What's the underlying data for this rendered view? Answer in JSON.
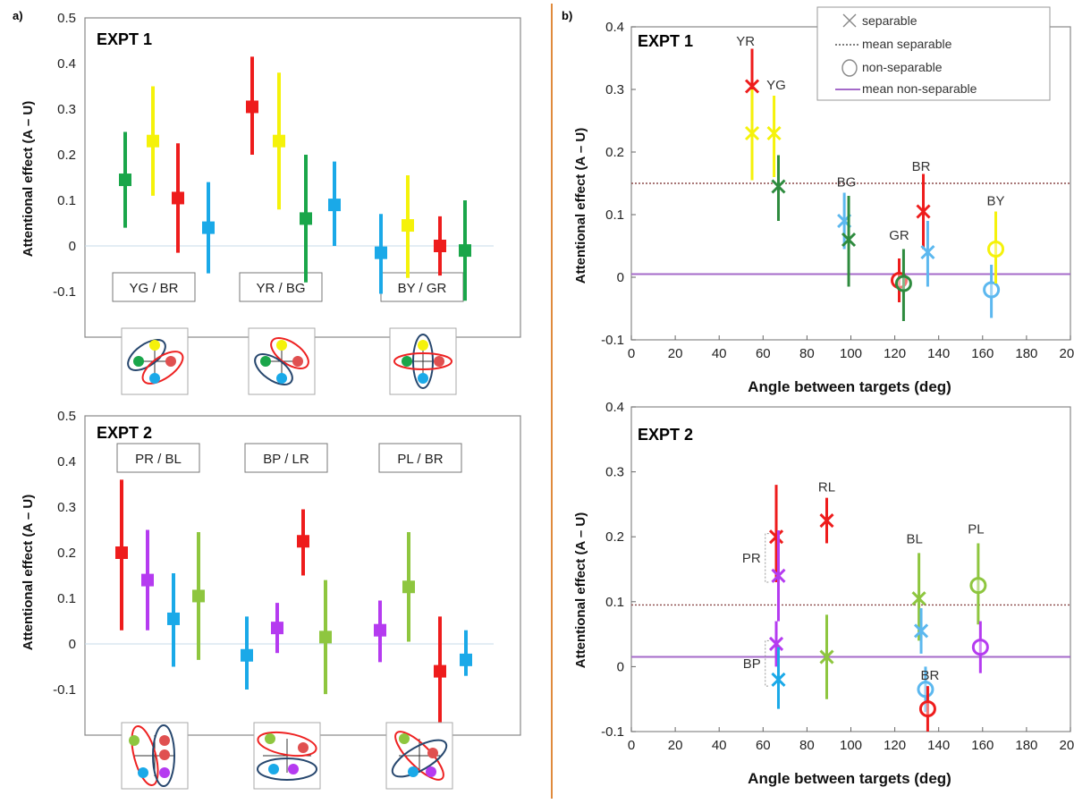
{
  "colors": {
    "yellow": "#f5f20a",
    "green": "#1aa64a",
    "red": "#ee1c1c",
    "blue": "#1aa9e8",
    "lightblue": "#5cb8ef",
    "purple": "#b53bf0",
    "lime": "#8ec63f",
    "midgreen": "#2e8b3e",
    "ellipseRed": "#ee2222",
    "ellipseBlue": "#27476e",
    "sepLine": "#8b4a4a",
    "nonsepLine": "#a46ac9",
    "divider": "#e08a3c"
  },
  "panel_labels": {
    "a": "a)",
    "b": "b)"
  },
  "y_axis_label": "Attentional effect  (A – U)",
  "x_axis_label": "Angle between targets (deg)",
  "legend": {
    "separable": "separable",
    "mean_separable": "mean separable",
    "non_separable": "non-separable",
    "mean_non_separable": "mean non-separable"
  },
  "chart_data": [
    {
      "id": "a1",
      "type": "scatter",
      "title": "EXPT 1",
      "ylim": [
        -0.2,
        0.5
      ],
      "yticks": [
        {
          "v": -0.1,
          "t": "-0.1"
        },
        {
          "v": 0,
          "t": "0"
        },
        {
          "v": 0.1,
          "t": "0.1"
        },
        {
          "v": 0.2,
          "t": "0.2"
        },
        {
          "v": 0.3,
          "t": "0.3"
        },
        {
          "v": 0.4,
          "t": "0.4"
        },
        {
          "v": 0.5,
          "t": "0.5"
        }
      ],
      "conditions": [
        "YG / BR",
        "YR / BG",
        "BY / GR"
      ],
      "points": [
        {
          "g": 0,
          "i": 0,
          "color": "green",
          "y": 0.145,
          "lo": 0.04,
          "hi": 0.25
        },
        {
          "g": 0,
          "i": 1,
          "color": "yellow",
          "y": 0.23,
          "lo": 0.11,
          "hi": 0.35
        },
        {
          "g": 0,
          "i": 2,
          "color": "red",
          "y": 0.105,
          "lo": -0.015,
          "hi": 0.225
        },
        {
          "g": 0,
          "i": 3,
          "color": "blue",
          "y": 0.04,
          "lo": -0.06,
          "hi": 0.14
        },
        {
          "g": 1,
          "i": 0,
          "color": "red",
          "y": 0.305,
          "lo": 0.2,
          "hi": 0.415
        },
        {
          "g": 1,
          "i": 1,
          "color": "yellow",
          "y": 0.23,
          "lo": 0.08,
          "hi": 0.38
        },
        {
          "g": 1,
          "i": 2,
          "color": "green",
          "y": 0.06,
          "lo": -0.08,
          "hi": 0.2
        },
        {
          "g": 1,
          "i": 3,
          "color": "blue",
          "y": 0.09,
          "lo": 0.0,
          "hi": 0.185
        },
        {
          "g": 2,
          "i": 0,
          "color": "blue",
          "y": -0.015,
          "lo": -0.105,
          "hi": 0.07
        },
        {
          "g": 2,
          "i": 1,
          "color": "yellow",
          "y": 0.045,
          "lo": -0.07,
          "hi": 0.155
        },
        {
          "g": 2,
          "i": 2,
          "color": "red",
          "y": 0.0,
          "lo": -0.065,
          "hi": 0.065
        },
        {
          "g": 2,
          "i": 3,
          "color": "green",
          "y": -0.01,
          "lo": -0.12,
          "hi": 0.1
        }
      ]
    },
    {
      "id": "a2",
      "type": "scatter",
      "title": "EXPT 2",
      "ylim": [
        -0.2,
        0.5
      ],
      "yticks": [
        {
          "v": -0.1,
          "t": "-0.1"
        },
        {
          "v": 0,
          "t": "0"
        },
        {
          "v": 0.1,
          "t": "0.1"
        },
        {
          "v": 0.2,
          "t": "0.2"
        },
        {
          "v": 0.3,
          "t": "0.3"
        },
        {
          "v": 0.4,
          "t": "0.4"
        },
        {
          "v": 0.5,
          "t": "0.5"
        }
      ],
      "conditions": [
        "PR / BL",
        "BP / LR",
        "PL / BR"
      ],
      "points": [
        {
          "g": 0,
          "i": 0,
          "color": "red",
          "y": 0.2,
          "lo": 0.03,
          "hi": 0.36
        },
        {
          "g": 0,
          "i": 1,
          "color": "purple",
          "y": 0.14,
          "lo": 0.03,
          "hi": 0.25
        },
        {
          "g": 0,
          "i": 2,
          "color": "blue",
          "y": 0.055,
          "lo": -0.05,
          "hi": 0.155
        },
        {
          "g": 0,
          "i": 3,
          "color": "lime",
          "y": 0.105,
          "lo": -0.035,
          "hi": 0.245
        },
        {
          "g": 1,
          "i": 0,
          "color": "blue",
          "y": -0.025,
          "lo": -0.1,
          "hi": 0.06
        },
        {
          "g": 1,
          "i": 1,
          "color": "purple",
          "y": 0.035,
          "lo": -0.02,
          "hi": 0.09
        },
        {
          "g": 1,
          "i": 2,
          "color": "red",
          "y": 0.225,
          "lo": 0.15,
          "hi": 0.295
        },
        {
          "g": 1,
          "i": 3,
          "color": "lime",
          "y": 0.015,
          "lo": -0.11,
          "hi": 0.14
        },
        {
          "g": 2,
          "i": 0,
          "color": "purple",
          "y": 0.03,
          "lo": -0.04,
          "hi": 0.095
        },
        {
          "g": 2,
          "i": 1,
          "color": "lime",
          "y": 0.125,
          "lo": 0.005,
          "hi": 0.245
        },
        {
          "g": 2,
          "i": 2,
          "color": "red",
          "y": -0.06,
          "lo": -0.19,
          "hi": 0.06
        },
        {
          "g": 2,
          "i": 3,
          "color": "blue",
          "y": -0.035,
          "lo": -0.07,
          "hi": 0.03
        }
      ]
    },
    {
      "id": "b1",
      "type": "scatter",
      "title": "EXPT 1",
      "xlim": [
        0,
        200
      ],
      "ylim": [
        -0.1,
        0.4
      ],
      "xticks": [
        0,
        20,
        40,
        60,
        80,
        100,
        120,
        140,
        160,
        180,
        200
      ],
      "yticks": [
        {
          "v": -0.1,
          "t": "-0.1"
        },
        {
          "v": 0,
          "t": "0"
        },
        {
          "v": 0.1,
          "t": "0.1"
        },
        {
          "v": 0.2,
          "t": "0.2"
        },
        {
          "v": 0.3,
          "t": "0.3"
        },
        {
          "v": 0.4,
          "t": "0.4"
        }
      ],
      "mean_separable": 0.15,
      "mean_non_separable": 0.005,
      "points": [
        {
          "x": 55,
          "y": 0.305,
          "lo": 0.25,
          "hi": 0.365,
          "color": "red",
          "marker": "x"
        },
        {
          "x": 55,
          "y": 0.23,
          "lo": 0.155,
          "hi": 0.3,
          "color": "yellow",
          "marker": "x"
        },
        {
          "x": 65,
          "y": 0.23,
          "lo": 0.16,
          "hi": 0.29,
          "color": "yellow",
          "marker": "x"
        },
        {
          "x": 67,
          "y": 0.145,
          "lo": 0.09,
          "hi": 0.195,
          "color": "midgreen",
          "marker": "x"
        },
        {
          "x": 97,
          "y": 0.09,
          "lo": 0.045,
          "hi": 0.135,
          "color": "lightblue",
          "marker": "x"
        },
        {
          "x": 99,
          "y": 0.06,
          "lo": -0.015,
          "hi": 0.13,
          "color": "midgreen",
          "marker": "x"
        },
        {
          "x": 122,
          "y": -0.005,
          "lo": -0.04,
          "hi": 0.03,
          "color": "red",
          "marker": "o"
        },
        {
          "x": 124,
          "y": -0.01,
          "lo": -0.07,
          "hi": 0.045,
          "color": "midgreen",
          "marker": "o"
        },
        {
          "x": 133,
          "y": 0.105,
          "lo": 0.045,
          "hi": 0.165,
          "color": "red",
          "marker": "x"
        },
        {
          "x": 135,
          "y": 0.04,
          "lo": -0.015,
          "hi": 0.09,
          "color": "lightblue",
          "marker": "x"
        },
        {
          "x": 164,
          "y": -0.02,
          "lo": -0.065,
          "hi": 0.02,
          "color": "lightblue",
          "marker": "o"
        },
        {
          "x": 166,
          "y": 0.045,
          "lo": -0.01,
          "hi": 0.105,
          "color": "yellow",
          "marker": "o"
        }
      ],
      "annotations": [
        {
          "text": "YR",
          "x": 52,
          "y": 0.37
        },
        {
          "text": "YG",
          "x": 66,
          "y": 0.3
        },
        {
          "text": "BG",
          "x": 98,
          "y": 0.145
        },
        {
          "text": "GR",
          "x": 122,
          "y": 0.06
        },
        {
          "text": "BR",
          "x": 132,
          "y": 0.17
        },
        {
          "text": "BY",
          "x": 166,
          "y": 0.115
        }
      ]
    },
    {
      "id": "b2",
      "type": "scatter",
      "title": "EXPT 2",
      "xlim": [
        0,
        200
      ],
      "ylim": [
        -0.1,
        0.4
      ],
      "xticks": [
        0,
        20,
        40,
        60,
        80,
        100,
        120,
        140,
        160,
        180,
        200
      ],
      "yticks": [
        {
          "v": -0.1,
          "t": "-0.1"
        },
        {
          "v": 0,
          "t": "0"
        },
        {
          "v": 0.1,
          "t": "0.1"
        },
        {
          "v": 0.2,
          "t": "0.2"
        },
        {
          "v": 0.3,
          "t": "0.3"
        },
        {
          "v": 0.4,
          "t": "0.4"
        }
      ],
      "mean_separable": 0.095,
      "mean_non_separable": 0.015,
      "points": [
        {
          "x": 66,
          "y": 0.2,
          "lo": 0.13,
          "hi": 0.28,
          "color": "red",
          "marker": "x"
        },
        {
          "x": 67,
          "y": 0.14,
          "lo": 0.07,
          "hi": 0.21,
          "color": "purple",
          "marker": "x"
        },
        {
          "x": 89,
          "y": 0.225,
          "lo": 0.19,
          "hi": 0.26,
          "color": "red",
          "marker": "x"
        },
        {
          "x": 66,
          "y": 0.035,
          "lo": 0.0,
          "hi": 0.07,
          "color": "purple",
          "marker": "x"
        },
        {
          "x": 67,
          "y": -0.02,
          "lo": -0.065,
          "hi": 0.03,
          "color": "blue",
          "marker": "x"
        },
        {
          "x": 89,
          "y": 0.015,
          "lo": -0.05,
          "hi": 0.08,
          "color": "lime",
          "marker": "x"
        },
        {
          "x": 131,
          "y": 0.105,
          "lo": 0.04,
          "hi": 0.175,
          "color": "lime",
          "marker": "x"
        },
        {
          "x": 132,
          "y": 0.055,
          "lo": 0.02,
          "hi": 0.09,
          "color": "lightblue",
          "marker": "x"
        },
        {
          "x": 134,
          "y": -0.035,
          "lo": -0.07,
          "hi": 0.0,
          "color": "lightblue",
          "marker": "o"
        },
        {
          "x": 135,
          "y": -0.065,
          "lo": -0.1,
          "hi": -0.03,
          "color": "red",
          "marker": "o"
        },
        {
          "x": 158,
          "y": 0.125,
          "lo": 0.065,
          "hi": 0.19,
          "color": "lime",
          "marker": "o"
        },
        {
          "x": 159,
          "y": 0.03,
          "lo": -0.01,
          "hi": 0.07,
          "color": "purple",
          "marker": "o"
        }
      ],
      "annotations": [
        {
          "text": "RL",
          "x": 89,
          "y": 0.27
        },
        {
          "text": "BL",
          "x": 129,
          "y": 0.19
        },
        {
          "text": "PL",
          "x": 157,
          "y": 0.205
        },
        {
          "text": "BR",
          "x": 136,
          "y": -0.02
        }
      ],
      "bracket_labels": [
        {
          "text": "PR",
          "ylo": 0.13,
          "yhi": 0.205,
          "x": 61
        },
        {
          "text": "BP",
          "ylo": -0.03,
          "yhi": 0.04,
          "x": 61
        }
      ]
    }
  ]
}
